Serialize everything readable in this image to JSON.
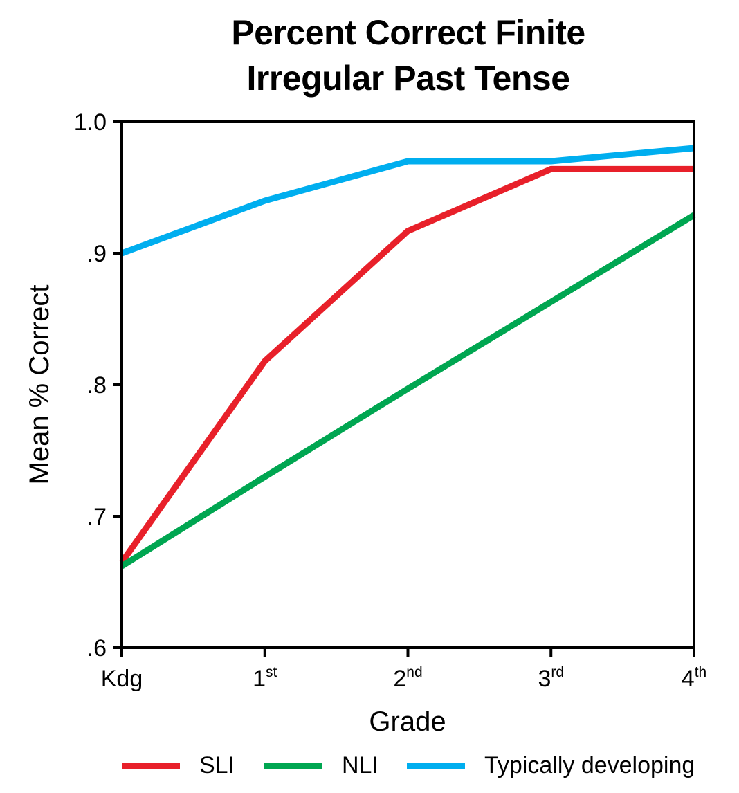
{
  "chart_data": {
    "type": "line",
    "title_lines": [
      "Percent Correct Finite",
      "Irregular Past Tense"
    ],
    "xlabel": "Grade",
    "ylabel": "Mean % Correct",
    "categories": [
      {
        "base": "Kdg",
        "sup": ""
      },
      {
        "base": "1",
        "sup": "st"
      },
      {
        "base": "2",
        "sup": "nd"
      },
      {
        "base": "3",
        "sup": "rd"
      },
      {
        "base": "4",
        "sup": "th"
      }
    ],
    "ylim": [
      0.6,
      1.0
    ],
    "yticks": [
      {
        "value": 1.0,
        "label": "1.0"
      },
      {
        "value": 0.9,
        "label": ".9"
      },
      {
        "value": 0.8,
        "label": ".8"
      },
      {
        "value": 0.7,
        "label": ".7"
      },
      {
        "value": 0.6,
        "label": ".6"
      }
    ],
    "grid": false,
    "legend_position": "bottom",
    "series": [
      {
        "name": "SLI",
        "color": "#e8202a",
        "values": [
          0.665,
          0.818,
          0.917,
          0.964,
          0.964
        ]
      },
      {
        "name": "NLI",
        "color": "#00a651",
        "values": [
          0.662,
          0.73,
          0.797,
          0.863,
          0.929
        ]
      },
      {
        "name": "Typically developing",
        "color": "#00aeef",
        "values": [
          0.9,
          0.94,
          0.97,
          0.97,
          0.98
        ]
      }
    ]
  }
}
